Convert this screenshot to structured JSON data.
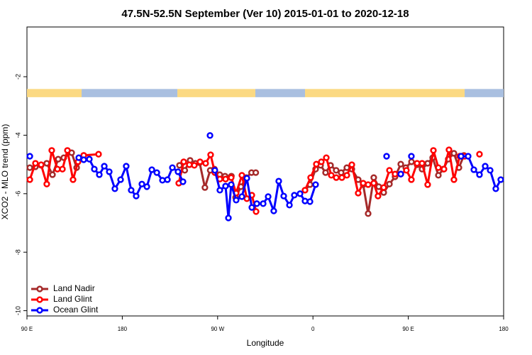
{
  "chart_data": {
    "type": "line",
    "title": "47.5N-52.5N September (Ver 10)   2015-01-01 to 2020-12-18",
    "x_label": "Longitude",
    "y_label": "XCO2 - MLO trend (ppm)",
    "xlim": [
      90,
      540
    ],
    "ylim": [
      -10.18,
      -0.3
    ],
    "xticks": [
      {
        "value": 90,
        "label": "90 E"
      },
      180,
      {
        "value": 270,
        "label": "90 W"
      },
      {
        "value": 360,
        "label": "0"
      },
      {
        "value": 450,
        "label": "90 E"
      },
      {
        "value": 540,
        "label": "180"
      }
    ],
    "yticks": [
      -2,
      -4,
      -6,
      -8,
      -10
    ],
    "legend": "bottom-left",
    "band": {
      "ylim": [
        -2.7,
        -2.42
      ],
      "segments": [
        {
          "start": 90,
          "end": 141.6,
          "color": "#fbd982"
        },
        {
          "start": 141.6,
          "end": 232,
          "color": "#a9bfe0"
        },
        {
          "start": 232,
          "end": 305.6,
          "color": "#fbd982"
        },
        {
          "start": 305.6,
          "end": 352.5,
          "color": "#a9bfe0"
        },
        {
          "start": 352.5,
          "end": 503.2,
          "color": "#fbd982"
        },
        {
          "start": 503.2,
          "end": 540,
          "color": "#a9bfe0"
        }
      ]
    },
    "series": [
      {
        "name": "Land Nadir",
        "color": "#a52a2a",
        "x": [
          92.7,
          98,
          103.4,
          108.7,
          114.1,
          119.5,
          124.8,
          132.2,
          136.9,
          143.6,
          null,
          234,
          239,
          244,
          249,
          253,
          258,
          263,
          267,
          272,
          277,
          283,
          287,
          292,
          297,
          302,
          306,
          null,
          352.5,
          357.2,
          362.5,
          367.2,
          371.9,
          376.6,
          381.9,
          386.6,
          392,
          396.7,
          402.7,
          407.4,
          412.1,
          417.4,
          422.1,
          426.8,
          432.2,
          437.5,
          442.9,
          447.6,
          453,
          458.3,
          463,
          468.3,
          473,
          478.4,
          483.1,
          487.7,
          493.1,
          497.8,
          502.5
        ],
        "values": [
          -5.11,
          -5.08,
          -5.03,
          -4.96,
          -5.35,
          -4.82,
          -4.77,
          -4.6,
          -5.11,
          -4.69,
          null,
          -5.03,
          -5.2,
          -4.86,
          -4.96,
          -4.94,
          -5.79,
          -5.2,
          -5.16,
          -5.35,
          -5.4,
          -5.4,
          -6.13,
          -5.76,
          -5.45,
          -5.28,
          -5.28,
          null,
          -5.88,
          -5.69,
          -5.16,
          -5.03,
          -5.28,
          -5.03,
          -5.2,
          -5.28,
          -5.11,
          -5.16,
          -5.52,
          -5.69,
          -6.68,
          -5.45,
          -5.76,
          -5.96,
          -5.67,
          -5.42,
          -4.99,
          -5.11,
          -4.91,
          -5.01,
          -5.16,
          -4.96,
          -4.77,
          -5.37,
          -5.16,
          -4.82,
          -4.62,
          -5.11,
          -4.69
        ]
      },
      {
        "name": "Land Glint",
        "color": "#ff0000",
        "x": [
          92.7,
          98,
          103.4,
          108.7,
          113.4,
          118.8,
          123.5,
          128.2,
          133.5,
          138.2,
          143.6,
          157.6,
          null,
          233.3,
          238,
          243.3,
          248,
          253.4,
          258.7,
          263.4,
          267.4,
          272.1,
          277.5,
          282.8,
          287.5,
          292.9,
          297.6,
          302.3,
          306.3,
          null,
          352.5,
          357.8,
          363.2,
          367.9,
          372.6,
          377.3,
          382,
          387.3,
          392,
          396.7,
          402.7,
          407.4,
          412.1,
          417.4,
          421.4,
          426.8,
          432.2,
          437.5,
          442.9,
          448.2,
          452.9,
          458.3,
          463,
          468.3,
          473.7,
          478.4,
          483.7,
          488.4,
          493.1,
          498.5,
          503.2,
          null,
          517.2
        ],
        "values": [
          -5.52,
          -4.96,
          -5.01,
          -5.67,
          -4.52,
          -5.16,
          -5.16,
          -4.52,
          -5.52,
          -4.91,
          -4.69,
          -4.65,
          null,
          -5.64,
          -4.91,
          -5.01,
          -5.03,
          -4.91,
          -4.96,
          -4.67,
          -5.28,
          -5.5,
          -5.5,
          -5.45,
          -5.98,
          -5.37,
          -6.17,
          -6.05,
          -6.61,
          null,
          -5.88,
          -5.45,
          -4.99,
          -4.91,
          -4.77,
          -5.37,
          -5.45,
          -5.45,
          -5.37,
          -5.01,
          -5.98,
          -5.64,
          -5.69,
          -5.64,
          -6.08,
          -5.79,
          -5.2,
          -5.33,
          -5.33,
          -5.2,
          -5.52,
          -4.96,
          -4.96,
          -5.69,
          -4.52,
          -5.11,
          -5.16,
          -4.5,
          -5.52,
          -4.72,
          -4.72,
          null,
          -4.65
        ]
      },
      {
        "name": "Ocean Glint",
        "color": "#0000ff",
        "x": [
          92.7,
          null,
          138.9,
          143.6,
          148.9,
          153.6,
          158.3,
          163,
          167.7,
          173,
          178.4,
          183.7,
          188.4,
          193.1,
          198.5,
          203.2,
          207.9,
          212.6,
          217.9,
          222.6,
          227.3,
          232.6,
          237.3,
          null,
          262.8,
          null,
          267.4,
          272.1,
          277.5,
          280.2,
          282.8,
          287.5,
          292.9,
          297.6,
          302.3,
          307,
          313,
          317.7,
          323,
          327.7,
          332.4,
          337.8,
          342.4,
          347.8,
          352.5,
          357.2,
          362.5,
          null,
          429.5,
          null,
          442.9,
          null,
          452.9,
          null,
          499.8,
          506.5,
          511.9,
          517.2,
          522.6,
          527.3,
          532.6,
          537.3
        ],
        "values": [
          -4.72,
          null,
          -4.77,
          -4.84,
          -4.82,
          -5.16,
          -5.35,
          -5.06,
          -5.25,
          -5.83,
          -5.52,
          -5.06,
          -5.88,
          -6.08,
          -5.67,
          -5.76,
          -5.18,
          -5.28,
          -5.54,
          -5.52,
          -5.11,
          -5.25,
          -5.59,
          null,
          -4.01,
          null,
          -5.2,
          -5.88,
          -5.74,
          -6.83,
          -5.69,
          -6.22,
          -6.1,
          -5.47,
          -6.47,
          -6.34,
          -6.34,
          -6.1,
          -6.59,
          -5.57,
          -6.08,
          -6.39,
          -6.05,
          -6,
          -6.25,
          -6.27,
          -5.69,
          null,
          -4.72,
          null,
          -5.33,
          null,
          -4.72,
          null,
          -4.72,
          -4.72,
          -5.18,
          -5.35,
          -5.06,
          -5.2,
          -5.83,
          -5.52
        ]
      }
    ]
  }
}
